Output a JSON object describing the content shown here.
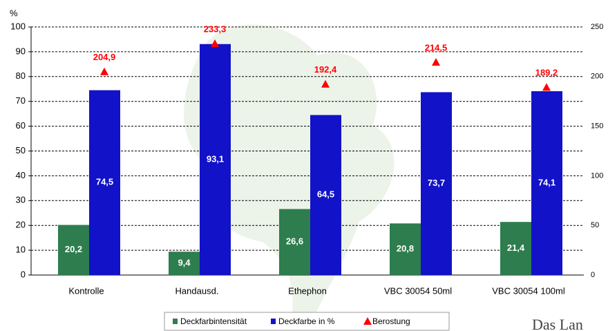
{
  "chart_data": {
    "type": "bar",
    "y_axis_label": "%",
    "categories": [
      "Kontrolle",
      "Handausd.",
      "Ethephon",
      "VBC 30054 50ml",
      "VBC 30054 100ml"
    ],
    "series": [
      {
        "name": "Deckfarbintensität",
        "color": "#2e7d4e",
        "values": [
          20.2,
          9.4,
          26.6,
          20.8,
          21.4
        ],
        "value_labels": [
          "20,2",
          "9,4",
          "26,6",
          "20,8",
          "21,4"
        ]
      },
      {
        "name": "Deckfarbe in %",
        "color": "#1212c8",
        "values": [
          74.5,
          93.1,
          64.5,
          73.7,
          74.1
        ],
        "value_labels": [
          "74,5",
          "93,1",
          "64,5",
          "73,7",
          "74,1"
        ]
      },
      {
        "name": "Berostung",
        "color": "#ff0000",
        "type": "marker",
        "axis": "y2",
        "values": [
          204.9,
          233.3,
          192.4,
          214.5,
          189.2
        ],
        "value_labels": [
          "204,9",
          "233,3",
          "192,4",
          "214,5",
          "189,2"
        ]
      }
    ],
    "ylim": [
      0,
      100
    ],
    "yticks": [
      0,
      10,
      20,
      30,
      40,
      50,
      60,
      70,
      80,
      90,
      100
    ],
    "y2lim": [
      0,
      250
    ],
    "y2ticks": [
      0,
      50,
      100,
      150,
      200,
      250
    ],
    "grid": true,
    "legend": "bottom"
  },
  "logo_text": "Das Lan"
}
